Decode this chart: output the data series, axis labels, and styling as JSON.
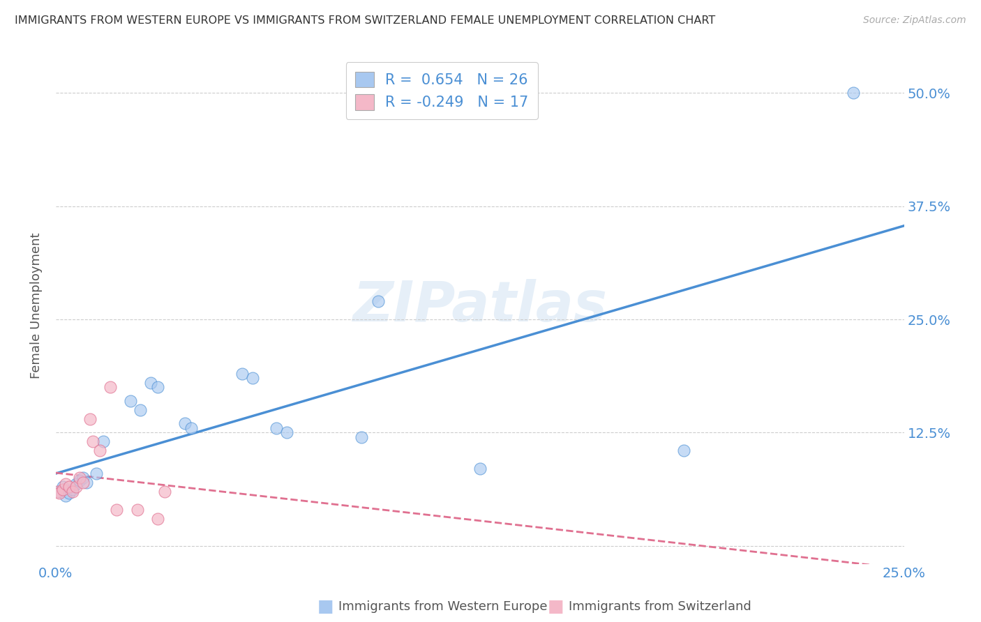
{
  "title": "IMMIGRANTS FROM WESTERN EUROPE VS IMMIGRANTS FROM SWITZERLAND FEMALE UNEMPLOYMENT CORRELATION CHART",
  "source": "Source: ZipAtlas.com",
  "xlabel_blue": "Immigrants from Western Europe",
  "xlabel_pink": "Immigrants from Switzerland",
  "ylabel": "Female Unemployment",
  "r_blue": 0.654,
  "n_blue": 26,
  "r_pink": -0.249,
  "n_pink": 17,
  "blue_scatter": [
    [
      0.001,
      0.06
    ],
    [
      0.002,
      0.065
    ],
    [
      0.003,
      0.055
    ],
    [
      0.004,
      0.058
    ],
    [
      0.005,
      0.062
    ],
    [
      0.006,
      0.068
    ],
    [
      0.007,
      0.072
    ],
    [
      0.008,
      0.075
    ],
    [
      0.009,
      0.07
    ],
    [
      0.012,
      0.08
    ],
    [
      0.014,
      0.115
    ],
    [
      0.022,
      0.16
    ],
    [
      0.025,
      0.15
    ],
    [
      0.028,
      0.18
    ],
    [
      0.03,
      0.175
    ],
    [
      0.038,
      0.135
    ],
    [
      0.04,
      0.13
    ],
    [
      0.055,
      0.19
    ],
    [
      0.058,
      0.185
    ],
    [
      0.065,
      0.13
    ],
    [
      0.068,
      0.125
    ],
    [
      0.09,
      0.12
    ],
    [
      0.095,
      0.27
    ],
    [
      0.125,
      0.085
    ],
    [
      0.185,
      0.105
    ],
    [
      0.235,
      0.5
    ]
  ],
  "pink_scatter": [
    [
      0.0005,
      0.06
    ],
    [
      0.001,
      0.058
    ],
    [
      0.002,
      0.062
    ],
    [
      0.003,
      0.068
    ],
    [
      0.004,
      0.065
    ],
    [
      0.005,
      0.06
    ],
    [
      0.006,
      0.065
    ],
    [
      0.007,
      0.075
    ],
    [
      0.008,
      0.07
    ],
    [
      0.01,
      0.14
    ],
    [
      0.011,
      0.115
    ],
    [
      0.013,
      0.105
    ],
    [
      0.016,
      0.175
    ],
    [
      0.018,
      0.04
    ],
    [
      0.024,
      0.04
    ],
    [
      0.03,
      0.03
    ],
    [
      0.032,
      0.06
    ]
  ],
  "blue_color": "#a8c8f0",
  "pink_color": "#f4b8c8",
  "blue_line_color": "#4a8fd4",
  "pink_line_color": "#e07090",
  "bg_color": "#ffffff",
  "grid_color": "#cccccc",
  "watermark": "ZIPatlas",
  "xmin": 0.0,
  "xmax": 0.25,
  "ymin": -0.02,
  "ymax": 0.55,
  "yticks": [
    0.0,
    0.125,
    0.25,
    0.375,
    0.5
  ],
  "ytick_labels": [
    "",
    "12.5%",
    "25.0%",
    "37.5%",
    "50.0%"
  ],
  "xticks": [
    0.0,
    0.25
  ],
  "xtick_labels": [
    "0.0%",
    "25.0%"
  ]
}
